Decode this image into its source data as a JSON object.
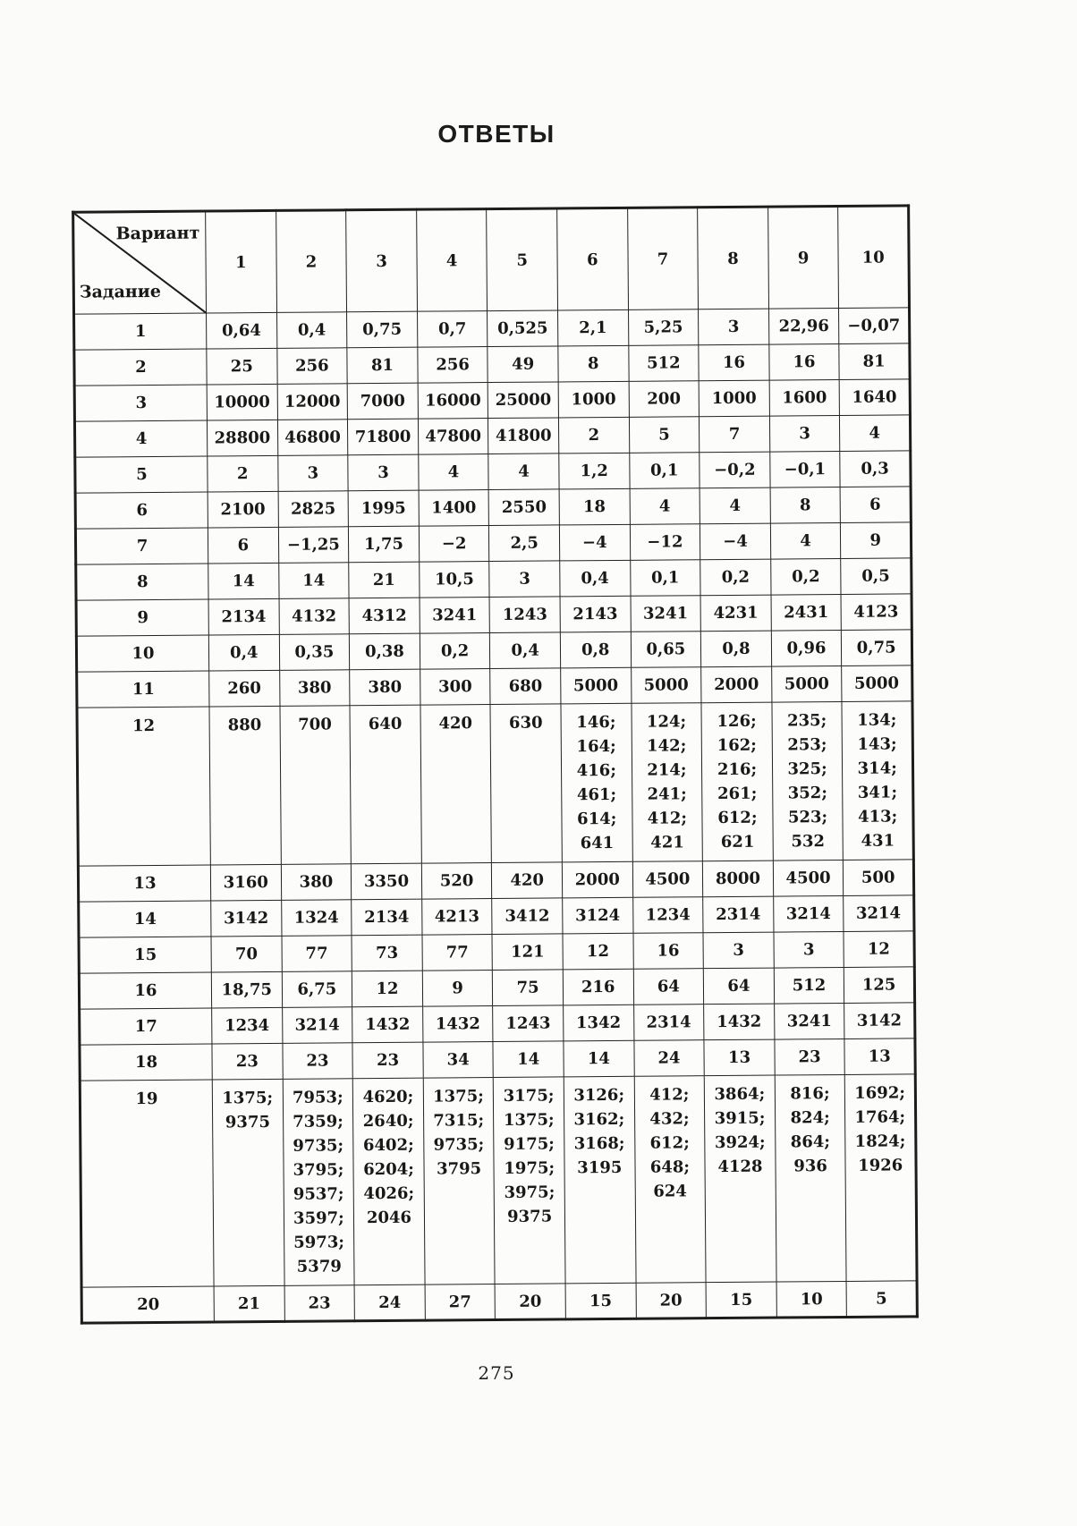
{
  "page": {
    "title": "ОТВЕТЫ",
    "page_number": "275"
  },
  "table": {
    "corner": {
      "top_right": "Вариант",
      "bottom_left": "Задание"
    },
    "variants": [
      "1",
      "2",
      "3",
      "4",
      "5",
      "6",
      "7",
      "8",
      "9",
      "10"
    ],
    "rows": [
      {
        "task": "1",
        "answers": [
          "0,64",
          "0,4",
          "0,75",
          "0,7",
          "0,525",
          "2,1",
          "5,25",
          "3",
          "22,96",
          "−0,07"
        ]
      },
      {
        "task": "2",
        "answers": [
          "25",
          "256",
          "81",
          "256",
          "49",
          "8",
          "512",
          "16",
          "16",
          "81"
        ]
      },
      {
        "task": "3",
        "answers": [
          "10000",
          "12000",
          "7000",
          "16000",
          "25000",
          "1000",
          "200",
          "1000",
          "1600",
          "1640"
        ]
      },
      {
        "task": "4",
        "answers": [
          "28800",
          "46800",
          "71800",
          "47800",
          "41800",
          "2",
          "5",
          "7",
          "3",
          "4"
        ]
      },
      {
        "task": "5",
        "answers": [
          "2",
          "3",
          "3",
          "4",
          "4",
          "1,2",
          "0,1",
          "−0,2",
          "−0,1",
          "0,3"
        ]
      },
      {
        "task": "6",
        "answers": [
          "2100",
          "2825",
          "1995",
          "1400",
          "2550",
          "18",
          "4",
          "4",
          "8",
          "6"
        ]
      },
      {
        "task": "7",
        "answers": [
          "6",
          "−1,25",
          "1,75",
          "−2",
          "2,5",
          "−4",
          "−12",
          "−4",
          "4",
          "9"
        ]
      },
      {
        "task": "8",
        "answers": [
          "14",
          "14",
          "21",
          "10,5",
          "3",
          "0,4",
          "0,1",
          "0,2",
          "0,2",
          "0,5"
        ]
      },
      {
        "task": "9",
        "answers": [
          "2134",
          "4132",
          "4312",
          "3241",
          "1243",
          "2143",
          "3241",
          "4231",
          "2431",
          "4123"
        ]
      },
      {
        "task": "10",
        "answers": [
          "0,4",
          "0,35",
          "0,38",
          "0,2",
          "0,4",
          "0,8",
          "0,65",
          "0,8",
          "0,96",
          "0,75"
        ]
      },
      {
        "task": "11",
        "answers": [
          "260",
          "380",
          "380",
          "300",
          "680",
          "5000",
          "5000",
          "2000",
          "5000",
          "5000"
        ]
      },
      {
        "task": "12",
        "answers": [
          "880",
          "700",
          "640",
          "420",
          "630",
          "146;\n164;\n416;\n461;\n614;\n641",
          "124;\n142;\n214;\n241;\n412;\n421",
          "126;\n162;\n216;\n261;\n612;\n621",
          "235;\n253;\n325;\n352;\n523;\n532",
          "134;\n143;\n314;\n341;\n413;\n431"
        ]
      },
      {
        "task": "13",
        "answers": [
          "3160",
          "380",
          "3350",
          "520",
          "420",
          "2000",
          "4500",
          "8000",
          "4500",
          "500"
        ]
      },
      {
        "task": "14",
        "answers": [
          "3142",
          "1324",
          "2134",
          "4213",
          "3412",
          "3124",
          "1234",
          "2314",
          "3214",
          "3214"
        ]
      },
      {
        "task": "15",
        "answers": [
          "70",
          "77",
          "73",
          "77",
          "121",
          "12",
          "16",
          "3",
          "3",
          "12"
        ]
      },
      {
        "task": "16",
        "answers": [
          "18,75",
          "6,75",
          "12",
          "9",
          "75",
          "216",
          "64",
          "64",
          "512",
          "125"
        ]
      },
      {
        "task": "17",
        "answers": [
          "1234",
          "3214",
          "1432",
          "1432",
          "1243",
          "1342",
          "2314",
          "1432",
          "3241",
          "3142"
        ]
      },
      {
        "task": "18",
        "answers": [
          "23",
          "23",
          "23",
          "34",
          "14",
          "14",
          "24",
          "13",
          "23",
          "13"
        ]
      },
      {
        "task": "19",
        "answers": [
          "1375;\n9375",
          "7953;\n7359;\n9735;\n3795;\n9537;\n3597;\n5973;\n5379",
          "4620;\n2640;\n6402;\n6204;\n4026;\n2046",
          "1375;\n7315;\n9735;\n3795",
          "3175;\n1375;\n9175;\n1975;\n3975;\n9375",
          "3126;\n3162;\n3168;\n3195",
          "412;\n432;\n612;\n648;\n624",
          "3864;\n3915;\n3924;\n4128",
          "816;\n824;\n864;\n936",
          "1692;\n1764;\n1824;\n1926"
        ]
      },
      {
        "task": "20",
        "answers": [
          "21",
          "23",
          "24",
          "27",
          "20",
          "15",
          "20",
          "15",
          "10",
          "5"
        ]
      }
    ]
  }
}
